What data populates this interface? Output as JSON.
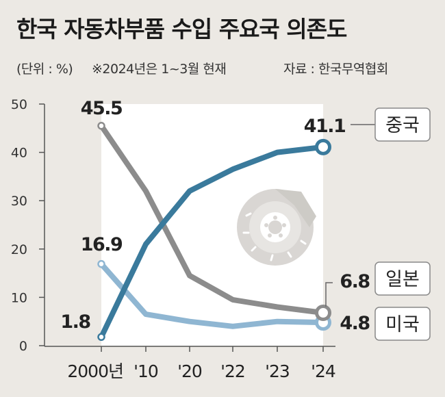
{
  "header": {
    "title": "한국 자동차부품 수입 주요국 의존도",
    "unit": "(단위 : %)",
    "note": "※2024년은 1~3월 현재",
    "source": "자료 : 한국무역협회"
  },
  "chart_data": {
    "type": "line",
    "title": "한국 자동차부품 수입 주요국 의존도",
    "xlabel": "",
    "ylabel": "%",
    "categories": [
      "2000년",
      "'10",
      "'20",
      "'22",
      "'23",
      "'24"
    ],
    "x": [
      2000,
      2010,
      2020,
      2022,
      2023,
      2024
    ],
    "ylim": [
      0,
      50
    ],
    "yticks": [
      0,
      10,
      20,
      30,
      40,
      50
    ],
    "grid": false,
    "series": [
      {
        "name": "중국",
        "values": [
          1.8,
          21.0,
          32.0,
          36.5,
          40.0,
          41.1
        ],
        "start_label": "1.8",
        "end_label": "41.1",
        "color": "#3a7a9c"
      },
      {
        "name": "일본",
        "values": [
          45.5,
          32.0,
          14.5,
          9.5,
          8.0,
          6.8
        ],
        "start_label": "45.5",
        "end_label": "6.8",
        "color": "#8c8c8c"
      },
      {
        "name": "미국",
        "values": [
          16.9,
          6.5,
          5.0,
          4.0,
          5.0,
          4.8
        ],
        "start_label": "16.9",
        "end_label": "4.8",
        "color": "#8fb6d2"
      }
    ]
  }
}
